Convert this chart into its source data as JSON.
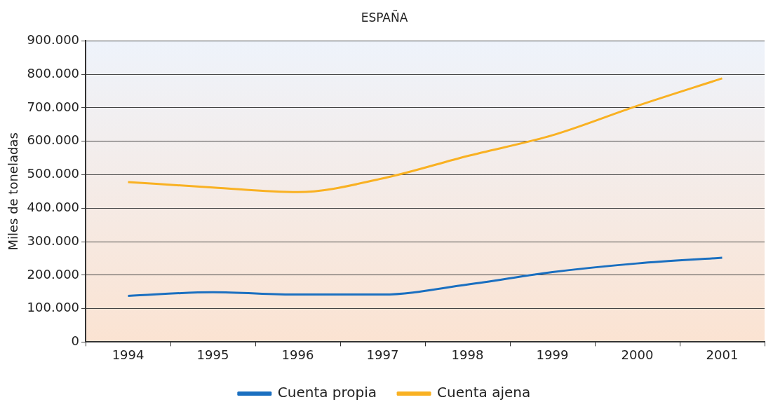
{
  "chart_data": {
    "type": "line",
    "title": "ESPAÑA",
    "ylabel": "Miles de toneladas",
    "categories": [
      "1994",
      "1995",
      "1996",
      "1997",
      "1998",
      "1999",
      "2000",
      "2001"
    ],
    "series": [
      {
        "name": "Cuenta propia",
        "color": "#1a6fc0",
        "values": [
          138000,
          149000,
          142000,
          142000,
          172000,
          209000,
          235000,
          252000
        ]
      },
      {
        "name": "Cuenta ajena",
        "color": "#f9b122",
        "values": [
          478000,
          462000,
          448000,
          489000,
          556000,
          618000,
          706000,
          788000
        ]
      }
    ],
    "ylim": [
      0,
      900000
    ],
    "yticks": [
      {
        "value": 0,
        "label": "0"
      },
      {
        "value": 100000,
        "label": "100.000"
      },
      {
        "value": 200000,
        "label": "200.000"
      },
      {
        "value": 300000,
        "label": "300.000"
      },
      {
        "value": 400000,
        "label": "400.000"
      },
      {
        "value": 500000,
        "label": "500.000"
      },
      {
        "value": 600000,
        "label": "600.000"
      },
      {
        "value": 700000,
        "label": "700.000"
      },
      {
        "value": 800000,
        "label": "800.000"
      },
      {
        "value": 900000,
        "label": "900.000"
      }
    ],
    "grid": "y",
    "legend": "bottom",
    "marker": "none",
    "line_style": "solid"
  }
}
